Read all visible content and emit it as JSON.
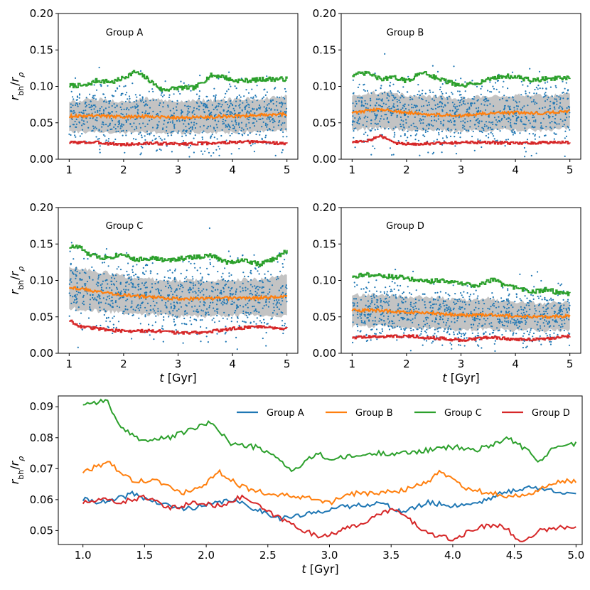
{
  "colors": {
    "scatter": "#1f77b4",
    "median": "#ff7f0e",
    "upper": "#2ca02c",
    "lower": "#d62728",
    "band": "#bdbdbd",
    "group_a": "#1f77b4",
    "group_b": "#ff7f0e",
    "group_c": "#2ca02c",
    "group_d": "#d62728"
  },
  "chart_data": [
    {
      "type": "scatter",
      "title": "Group A",
      "ylabel": "r_bh/r_ρ",
      "xlabel": "",
      "xlim": [
        0.8,
        5.2
      ],
      "ylim": [
        0.0,
        0.2
      ],
      "xticks": [
        "1",
        "2",
        "3",
        "4",
        "5"
      ],
      "yticks": [
        "0.00",
        "0.05",
        "0.10",
        "0.15",
        "0.20"
      ],
      "median_line": {
        "x": [
          1.0,
          1.5,
          2.0,
          2.5,
          3.0,
          3.5,
          4.0,
          4.5,
          5.0
        ],
        "y": [
          0.059,
          0.06,
          0.058,
          0.059,
          0.057,
          0.058,
          0.059,
          0.061,
          0.062
        ]
      },
      "band": {
        "x": [
          1.0,
          1.5,
          2.0,
          2.5,
          3.0,
          3.5,
          4.0,
          4.5,
          5.0
        ],
        "low": [
          0.037,
          0.038,
          0.036,
          0.037,
          0.036,
          0.037,
          0.037,
          0.038,
          0.039
        ],
        "high": [
          0.08,
          0.082,
          0.08,
          0.083,
          0.08,
          0.081,
          0.082,
          0.083,
          0.086
        ]
      },
      "upper_line": {
        "x": [
          1.0,
          1.3,
          1.5,
          1.8,
          2.0,
          2.2,
          2.4,
          2.7,
          3.0,
          3.3,
          3.6,
          3.8,
          4.0,
          4.3,
          4.6,
          5.0
        ],
        "y": [
          0.101,
          0.101,
          0.108,
          0.106,
          0.112,
          0.12,
          0.112,
          0.095,
          0.098,
          0.098,
          0.115,
          0.114,
          0.108,
          0.108,
          0.11,
          0.11
        ]
      },
      "lower_line": {
        "x": [
          1.0,
          1.5,
          2.0,
          2.5,
          3.0,
          3.5,
          4.0,
          4.5,
          5.0
        ],
        "y": [
          0.023,
          0.023,
          0.02,
          0.022,
          0.021,
          0.022,
          0.023,
          0.024,
          0.021
        ]
      },
      "scatter_spread": {
        "center": 0.06,
        "sd": 0.022
      }
    },
    {
      "type": "scatter",
      "title": "Group B",
      "ylabel": "",
      "xlabel": "",
      "xlim": [
        0.8,
        5.2
      ],
      "ylim": [
        0.0,
        0.2
      ],
      "xticks": [
        "1",
        "2",
        "3",
        "4",
        "5"
      ],
      "yticks": [
        "0.00",
        "0.05",
        "0.10",
        "0.15",
        "0.20"
      ],
      "median_line": {
        "x": [
          1.0,
          1.5,
          2.0,
          2.5,
          3.0,
          3.5,
          4.0,
          4.5,
          5.0
        ],
        "y": [
          0.064,
          0.069,
          0.064,
          0.061,
          0.06,
          0.063,
          0.064,
          0.063,
          0.066
        ]
      },
      "band": {
        "x": [
          1.0,
          1.5,
          2.0,
          2.5,
          3.0,
          3.5,
          4.0,
          4.5,
          5.0
        ],
        "low": [
          0.04,
          0.043,
          0.04,
          0.039,
          0.038,
          0.04,
          0.04,
          0.04,
          0.042
        ]
      },
      "band_high": [
        0.088,
        0.092,
        0.088,
        0.086,
        0.084,
        0.087,
        0.088,
        0.087,
        0.09
      ],
      "upper_line": {
        "x": [
          1.0,
          1.3,
          1.5,
          1.8,
          2.0,
          2.3,
          2.5,
          2.8,
          3.0,
          3.3,
          3.6,
          3.8,
          4.0,
          4.3,
          4.6,
          5.0
        ],
        "y": [
          0.116,
          0.118,
          0.11,
          0.112,
          0.107,
          0.12,
          0.113,
          0.105,
          0.1,
          0.105,
          0.112,
          0.114,
          0.113,
          0.108,
          0.111,
          0.111
        ]
      },
      "lower_line": {
        "x": [
          1.0,
          1.3,
          1.5,
          1.8,
          2.0,
          2.5,
          3.0,
          3.5,
          4.0,
          4.5,
          5.0
        ],
        "y": [
          0.024,
          0.026,
          0.032,
          0.022,
          0.021,
          0.022,
          0.023,
          0.023,
          0.022,
          0.023,
          0.023
        ]
      },
      "scatter_spread": {
        "center": 0.064,
        "sd": 0.023
      }
    },
    {
      "type": "scatter",
      "title": "Group C",
      "ylabel": "r_bh/r_ρ",
      "xlabel": "t [Gyr]",
      "xlim": [
        0.8,
        5.2
      ],
      "ylim": [
        0.0,
        0.2
      ],
      "xticks": [
        "1",
        "2",
        "3",
        "4",
        "5"
      ],
      "yticks": [
        "0.00",
        "0.05",
        "0.10",
        "0.15",
        "0.20"
      ],
      "median_line": {
        "x": [
          1.0,
          1.5,
          2.0,
          2.5,
          3.0,
          3.5,
          4.0,
          4.5,
          5.0
        ],
        "y": [
          0.091,
          0.085,
          0.08,
          0.077,
          0.075,
          0.075,
          0.076,
          0.076,
          0.078
        ]
      },
      "band": {
        "x": [
          1.0,
          1.5,
          2.0,
          2.5,
          3.0,
          3.5,
          4.0,
          4.5,
          5.0
        ],
        "low": [
          0.062,
          0.058,
          0.055,
          0.053,
          0.051,
          0.051,
          0.052,
          0.052,
          0.05
        ]
      },
      "band_high": [
        0.12,
        0.113,
        0.106,
        0.102,
        0.1,
        0.1,
        0.101,
        0.101,
        0.109
      ],
      "upper_line": {
        "x": [
          1.0,
          1.2,
          1.3,
          1.6,
          1.8,
          2.0,
          2.2,
          2.5,
          2.8,
          3.0,
          3.3,
          3.6,
          3.9,
          4.2,
          4.5,
          4.8,
          5.0
        ],
        "y": [
          0.146,
          0.146,
          0.137,
          0.131,
          0.133,
          0.137,
          0.128,
          0.131,
          0.127,
          0.13,
          0.132,
          0.134,
          0.125,
          0.128,
          0.122,
          0.131,
          0.141
        ]
      },
      "lower_line": {
        "x": [
          1.0,
          1.2,
          1.5,
          2.0,
          2.5,
          3.0,
          3.5,
          4.0,
          4.5,
          5.0
        ],
        "y": [
          0.045,
          0.037,
          0.034,
          0.03,
          0.031,
          0.028,
          0.029,
          0.034,
          0.037,
          0.034
        ]
      },
      "scatter_spread": {
        "center": 0.082,
        "sd": 0.025
      }
    },
    {
      "type": "scatter",
      "title": "Group D",
      "ylabel": "",
      "xlabel": "t [Gyr]",
      "xlim": [
        0.8,
        5.2
      ],
      "ylim": [
        0.0,
        0.2
      ],
      "xticks": [
        "1",
        "2",
        "3",
        "4",
        "5"
      ],
      "yticks": [
        "0.00",
        "0.05",
        "0.10",
        "0.15",
        "0.20"
      ],
      "median_line": {
        "x": [
          1.0,
          1.5,
          2.0,
          2.5,
          3.0,
          3.5,
          4.0,
          4.5,
          5.0
        ],
        "y": [
          0.059,
          0.059,
          0.056,
          0.055,
          0.052,
          0.053,
          0.051,
          0.05,
          0.051
        ]
      },
      "band": {
        "x": [
          1.0,
          1.5,
          2.0,
          2.5,
          3.0,
          3.5,
          4.0,
          4.5,
          5.0
        ],
        "low": [
          0.037,
          0.037,
          0.035,
          0.034,
          0.032,
          0.033,
          0.032,
          0.031,
          0.032
        ]
      },
      "band_high": [
        0.08,
        0.081,
        0.078,
        0.077,
        0.073,
        0.075,
        0.071,
        0.069,
        0.07
      ],
      "upper_line": {
        "x": [
          1.0,
          1.3,
          1.6,
          2.0,
          2.3,
          2.6,
          3.0,
          3.3,
          3.6,
          3.8,
          4.0,
          4.3,
          4.6,
          4.8,
          5.0
        ],
        "y": [
          0.106,
          0.108,
          0.106,
          0.103,
          0.098,
          0.1,
          0.096,
          0.093,
          0.102,
          0.092,
          0.09,
          0.084,
          0.088,
          0.082,
          0.082
        ]
      },
      "lower_line": {
        "x": [
          1.0,
          1.5,
          2.0,
          2.5,
          3.0,
          3.5,
          4.0,
          4.5,
          5.0
        ],
        "y": [
          0.022,
          0.023,
          0.024,
          0.021,
          0.018,
          0.022,
          0.019,
          0.019,
          0.024
        ]
      },
      "scatter_spread": {
        "center": 0.057,
        "sd": 0.021
      }
    },
    {
      "type": "line",
      "title": "",
      "ylabel": "r_bh/r_ρ",
      "xlabel": "t [Gyr]",
      "xlim": [
        0.8,
        5.05
      ],
      "ylim": [
        0.0455,
        0.0935
      ],
      "xticks": [
        "1.0",
        "1.5",
        "2.0",
        "2.5",
        "3.0",
        "3.5",
        "4.0",
        "4.5",
        "5.0"
      ],
      "yticks": [
        "0.05",
        "0.06",
        "0.07",
        "0.08",
        "0.09"
      ],
      "legend": [
        "Group A",
        "Group B",
        "Group C",
        "Group D"
      ],
      "legend_position": "top-right",
      "series": [
        {
          "name": "Group A",
          "x": [
            1.0,
            1.2,
            1.4,
            1.6,
            1.8,
            2.0,
            2.2,
            2.4,
            2.6,
            2.8,
            3.0,
            3.2,
            3.4,
            3.6,
            3.8,
            4.0,
            4.2,
            4.4,
            4.6,
            4.8,
            5.0
          ],
          "y": [
            0.06,
            0.059,
            0.062,
            0.059,
            0.057,
            0.058,
            0.06,
            0.057,
            0.054,
            0.055,
            0.057,
            0.058,
            0.059,
            0.056,
            0.059,
            0.058,
            0.059,
            0.062,
            0.064,
            0.063,
            0.062
          ]
        },
        {
          "name": "Group B",
          "x": [
            1.0,
            1.2,
            1.4,
            1.6,
            1.8,
            2.0,
            2.1,
            2.3,
            2.5,
            2.7,
            2.9,
            3.0,
            3.2,
            3.4,
            3.6,
            3.8,
            3.9,
            4.1,
            4.3,
            4.5,
            4.7,
            4.85,
            5.0
          ],
          "y": [
            0.069,
            0.072,
            0.066,
            0.066,
            0.062,
            0.065,
            0.069,
            0.064,
            0.062,
            0.061,
            0.06,
            0.059,
            0.062,
            0.062,
            0.063,
            0.066,
            0.069,
            0.064,
            0.062,
            0.061,
            0.063,
            0.066,
            0.066
          ]
        },
        {
          "name": "Group C",
          "x": [
            1.0,
            1.2,
            1.3,
            1.5,
            1.7,
            1.9,
            2.05,
            2.2,
            2.4,
            2.6,
            2.7,
            2.9,
            3.0,
            3.2,
            3.4,
            3.6,
            3.8,
            4.0,
            4.2,
            4.45,
            4.6,
            4.7,
            4.85,
            5.0
          ],
          "y": [
            0.091,
            0.092,
            0.083,
            0.079,
            0.08,
            0.083,
            0.085,
            0.078,
            0.077,
            0.073,
            0.069,
            0.075,
            0.073,
            0.074,
            0.075,
            0.075,
            0.076,
            0.077,
            0.076,
            0.08,
            0.076,
            0.072,
            0.078,
            0.078
          ]
        },
        {
          "name": "Group D",
          "x": [
            1.0,
            1.2,
            1.3,
            1.5,
            1.7,
            1.9,
            2.1,
            2.3,
            2.5,
            2.7,
            2.9,
            3.1,
            3.3,
            3.5,
            3.6,
            3.8,
            4.0,
            4.2,
            4.4,
            4.55,
            4.7,
            4.85,
            5.0
          ],
          "y": [
            0.059,
            0.06,
            0.059,
            0.061,
            0.057,
            0.059,
            0.058,
            0.061,
            0.056,
            0.052,
            0.048,
            0.05,
            0.053,
            0.057,
            0.055,
            0.049,
            0.047,
            0.051,
            0.052,
            0.046,
            0.05,
            0.051,
            0.051
          ]
        }
      ]
    }
  ]
}
